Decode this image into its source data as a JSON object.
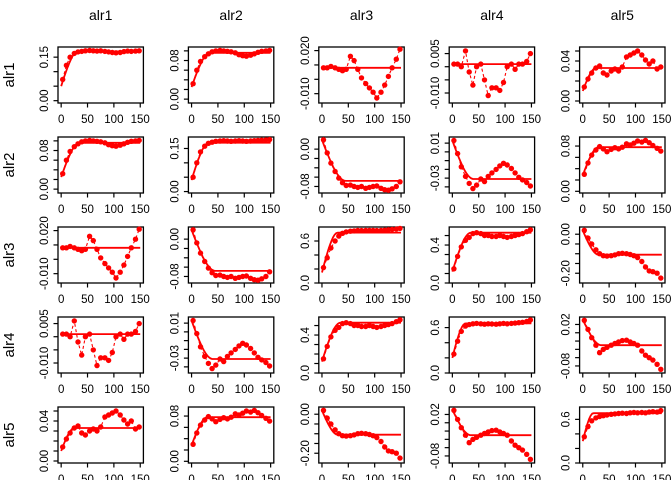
{
  "chart_data": {
    "type": "scatter",
    "layout_hint": "5x5 symmetric matrix of empirical logratio variograms (R graphics): red points joined by dashed lines, solid red fitted model / sill line, black panel boxes, per-panel axes",
    "title": "",
    "variables": [
      "alr1",
      "alr2",
      "alr3",
      "alr4",
      "alr5"
    ],
    "column_titles": [
      "alr1",
      "alr2",
      "alr3",
      "alr4",
      "alr5"
    ],
    "row_labels": [
      "alr1",
      "alr2",
      "alr3",
      "alr4",
      "alr5"
    ],
    "color": "#ff0000",
    "axis_color": "#000000",
    "symmetric": true,
    "x": [
      3,
      10,
      17,
      25,
      32,
      39,
      46,
      54,
      61,
      68,
      75,
      83,
      90,
      97,
      104,
      112,
      119,
      126,
      133,
      141,
      148
    ],
    "x_range": [
      -6,
      156
    ],
    "x_ticks": [
      0,
      50,
      100,
      150
    ],
    "x_tick_labels": [
      "0",
      "50",
      "100",
      "150"
    ],
    "panels": {
      "11": {
        "ylim": [
          -0.008,
          0.185
        ],
        "range": 32,
        "nugget": 0.05,
        "sill": 0.17,
        "yticks": [
          {
            "v": 0,
            "l": "0.00"
          },
          {
            "v": 0.05
          },
          {
            "v": 0.1
          },
          {
            "v": 0.15,
            "l": "0.15"
          }
        ],
        "y": [
          0.073,
          0.122,
          0.15,
          0.163,
          0.168,
          0.17,
          0.172,
          0.173,
          0.172,
          0.171,
          0.172,
          0.17,
          0.168,
          0.166,
          0.165,
          0.166,
          0.169,
          0.171,
          0.17,
          0.171,
          0.172
        ]
      },
      "12": {
        "ylim": [
          -0.008,
          0.108
        ],
        "range": 35,
        "nugget": 0.025,
        "sill": 0.096,
        "yticks": [
          {
            "v": 0,
            "l": "0.00"
          },
          {
            "v": 0.02
          },
          {
            "v": 0.04
          },
          {
            "v": 0.06
          },
          {
            "v": 0.08,
            "l": "0.08"
          },
          {
            "v": 0.1
          }
        ],
        "y": [
          0.032,
          0.06,
          0.078,
          0.088,
          0.094,
          0.098,
          0.1,
          0.101,
          0.1,
          0.099,
          0.098,
          0.096,
          0.092,
          0.09,
          0.089,
          0.091,
          0.094,
          0.097,
          0.099,
          0.1,
          0.101
        ]
      },
      "13": {
        "ylim": [
          -0.0165,
          0.0225
        ],
        "range": 40,
        "nugget": 0.008,
        "sill": 0.008,
        "yticks": [
          {
            "v": -0.01,
            "l": "-0.010"
          },
          {
            "v": 0
          },
          {
            "v": 0.01
          },
          {
            "v": 0.02,
            "l": "0.020"
          }
        ],
        "y": [
          0.008,
          0.008,
          0.009,
          0.008,
          0.007,
          0.006,
          0.007,
          0.016,
          0.013,
          0.007,
          0.001,
          -0.003,
          -0.006,
          -0.009,
          -0.013,
          -0.009,
          -0.004,
          0.002,
          0.008,
          0.014,
          0.021
        ]
      },
      "14": {
        "ylim": [
          -0.0138,
          0.0075
        ],
        "range": 40,
        "nugget": 0.001,
        "sill": 0.001,
        "yticks": [
          {
            "v": -0.01,
            "l": "-0.010"
          },
          {
            "v": -0.005
          },
          {
            "v": 0
          },
          {
            "v": 0.005,
            "l": "0.005"
          }
        ],
        "y": [
          0.001,
          0.001,
          0.0,
          0.006,
          -0.002,
          -0.007,
          0.0,
          0.001,
          -0.005,
          -0.011,
          -0.008,
          -0.008,
          -0.009,
          -0.006,
          0.0,
          0.001,
          -0.001,
          0.001,
          0.001,
          0.002,
          0.005
        ]
      },
      "15": {
        "ylim": [
          -0.002,
          0.054
        ],
        "range": 25,
        "nugget": 0.01,
        "sill": 0.033,
        "yticks": [
          {
            "v": 0,
            "l": "0.00"
          },
          {
            "v": 0.01
          },
          {
            "v": 0.02
          },
          {
            "v": 0.03
          },
          {
            "v": 0.04,
            "l": "0.04"
          },
          {
            "v": 0.05
          }
        ],
        "y": [
          0.014,
          0.022,
          0.028,
          0.033,
          0.035,
          0.028,
          0.026,
          0.03,
          0.032,
          0.03,
          0.034,
          0.044,
          0.046,
          0.048,
          0.05,
          0.046,
          0.041,
          0.037,
          0.04,
          0.032,
          0.034
        ]
      },
      "22": {
        "ylim": [
          -0.005,
          0.19
        ],
        "range": 33,
        "nugget": 0.04,
        "sill": 0.17,
        "yticks": [
          {
            "v": 0,
            "l": "0.00"
          },
          {
            "v": 0.05
          },
          {
            "v": 0.1
          },
          {
            "v": 0.15,
            "l": "0.15"
          }
        ],
        "y": [
          0.05,
          0.1,
          0.138,
          0.158,
          0.168,
          0.172,
          0.175,
          0.176,
          0.177,
          0.176,
          0.175,
          0.176,
          0.177,
          0.176,
          0.175,
          0.176,
          0.177,
          0.178,
          0.179,
          0.18,
          0.181
        ]
      },
      "23": {
        "ylim": [
          -0.094,
          0.026
        ],
        "range": 45,
        "nugget": 0.02,
        "sill": -0.068,
        "yticks": [
          {
            "v": -0.08,
            "l": "-0.08"
          },
          {
            "v": -0.06
          },
          {
            "v": -0.04
          },
          {
            "v": -0.02
          },
          {
            "v": 0,
            "l": "0.00"
          }
        ],
        "y": [
          0.02,
          -0.008,
          -0.03,
          -0.048,
          -0.062,
          -0.072,
          -0.078,
          -0.077,
          -0.08,
          -0.082,
          -0.08,
          -0.084,
          -0.082,
          -0.08,
          -0.079,
          -0.084,
          -0.087,
          -0.088,
          -0.085,
          -0.08,
          -0.07
        ]
      },
      "24": {
        "ylim": [
          -0.047,
          0.017
        ],
        "range": 40,
        "nugget": 0.013,
        "sill": -0.031,
        "yticks": [
          {
            "v": -0.04
          },
          {
            "v": -0.03,
            "l": "-0.03"
          },
          {
            "v": -0.02
          },
          {
            "v": -0.01
          },
          {
            "v": 0
          },
          {
            "v": 0.01,
            "l": "0.01"
          }
        ],
        "y": [
          0.013,
          -0.002,
          -0.017,
          -0.028,
          -0.036,
          -0.042,
          -0.038,
          -0.031,
          -0.034,
          -0.028,
          -0.024,
          -0.02,
          -0.016,
          -0.013,
          -0.015,
          -0.019,
          -0.024,
          -0.029,
          -0.032,
          -0.035,
          -0.039
        ]
      },
      "25": {
        "ylim": [
          -0.003,
          0.096
        ],
        "range": 30,
        "nugget": 0.028,
        "sill": 0.078,
        "yticks": [
          {
            "v": 0,
            "l": "0.00"
          },
          {
            "v": 0.02
          },
          {
            "v": 0.04
          },
          {
            "v": 0.06
          },
          {
            "v": 0.08,
            "l": "0.08"
          }
        ],
        "y": [
          0.03,
          0.05,
          0.064,
          0.073,
          0.079,
          0.075,
          0.07,
          0.074,
          0.077,
          0.075,
          0.078,
          0.084,
          0.082,
          0.085,
          0.089,
          0.087,
          0.09,
          0.086,
          0.081,
          0.076,
          0.071
        ]
      },
      "33": {
        "ylim": [
          0,
          0.8
        ],
        "range": 30,
        "nugget": 0.15,
        "sill": 0.72,
        "yticks": [
          {
            "v": 0,
            "l": "0.0"
          },
          {
            "v": 0.2
          },
          {
            "v": 0.4
          },
          {
            "v": 0.6,
            "l": "0.6"
          }
        ],
        "y": [
          0.22,
          0.36,
          0.5,
          0.6,
          0.67,
          0.71,
          0.73,
          0.74,
          0.745,
          0.75,
          0.748,
          0.75,
          0.752,
          0.75,
          0.748,
          0.75,
          0.755,
          0.76,
          0.765,
          0.77,
          0.78
        ]
      },
      "34": {
        "ylim": [
          0,
          0.59
        ],
        "range": 35,
        "nugget": 0.12,
        "sill": 0.53,
        "yticks": [
          {
            "v": 0,
            "l": "0.0"
          },
          {
            "v": 0.1
          },
          {
            "v": 0.2
          },
          {
            "v": 0.3
          },
          {
            "v": 0.4,
            "l": "0.4"
          },
          {
            "v": 0.5
          }
        ],
        "y": [
          0.15,
          0.28,
          0.38,
          0.45,
          0.48,
          0.52,
          0.53,
          0.52,
          0.5,
          0.5,
          0.49,
          0.49,
          0.5,
          0.49,
          0.48,
          0.49,
          0.5,
          0.51,
          0.52,
          0.54,
          0.56
        ]
      },
      "35": {
        "ylim": [
          -0.25,
          0.037
        ],
        "range": 30,
        "nugget": 0.02,
        "sill": -0.105,
        "yticks": [
          {
            "v": -0.2,
            "l": "-0.20"
          },
          {
            "v": -0.15
          },
          {
            "v": -0.1
          },
          {
            "v": -0.05
          },
          {
            "v": 0,
            "l": "0.00"
          }
        ],
        "y": [
          0.02,
          -0.02,
          -0.05,
          -0.08,
          -0.1,
          -0.11,
          -0.112,
          -0.11,
          -0.106,
          -0.1,
          -0.098,
          -0.1,
          -0.104,
          -0.11,
          -0.12,
          -0.14,
          -0.168,
          -0.188,
          -0.192,
          -0.2,
          -0.225
        ]
      },
      "44": {
        "ylim": [
          0,
          0.74
        ],
        "range": 25,
        "nugget": 0.2,
        "sill": 0.655,
        "yticks": [
          {
            "v": 0,
            "l": "0.0"
          },
          {
            "v": 0.2
          },
          {
            "v": 0.4
          },
          {
            "v": 0.6,
            "l": "0.6"
          }
        ],
        "y": [
          0.25,
          0.42,
          0.55,
          0.62,
          0.64,
          0.65,
          0.655,
          0.65,
          0.645,
          0.65,
          0.648,
          0.645,
          0.65,
          0.655,
          0.65,
          0.655,
          0.66,
          0.665,
          0.67,
          0.68,
          0.7
        ]
      },
      "45": {
        "ylim": [
          -0.097,
          0.038
        ],
        "range": 35,
        "nugget": 0.032,
        "sill": -0.03,
        "yticks": [
          {
            "v": -0.08,
            "l": "-0.08"
          },
          {
            "v": -0.06
          },
          {
            "v": -0.04
          },
          {
            "v": -0.02
          },
          {
            "v": 0
          },
          {
            "v": 0.02,
            "l": "0.02"
          }
        ],
        "y": [
          0.03,
          0.008,
          -0.012,
          -0.03,
          -0.048,
          -0.04,
          -0.035,
          -0.03,
          -0.026,
          -0.022,
          -0.019,
          -0.018,
          -0.022,
          -0.026,
          -0.03,
          -0.044,
          -0.054,
          -0.06,
          -0.066,
          -0.076,
          -0.088
        ]
      },
      "55": {
        "ylim": [
          0,
          0.77
        ],
        "range": 20,
        "nugget": 0.3,
        "sill": 0.685,
        "yticks": [
          {
            "v": 0,
            "l": "0.0"
          },
          {
            "v": 0.2
          },
          {
            "v": 0.4
          },
          {
            "v": 0.6,
            "l": "0.6"
          }
        ],
        "y": [
          0.36,
          0.5,
          0.58,
          0.62,
          0.64,
          0.65,
          0.66,
          0.67,
          0.675,
          0.68,
          0.685,
          0.68,
          0.69,
          0.695,
          0.69,
          0.695,
          0.69,
          0.7,
          0.705,
          0.7,
          0.72
        ]
      }
    }
  }
}
